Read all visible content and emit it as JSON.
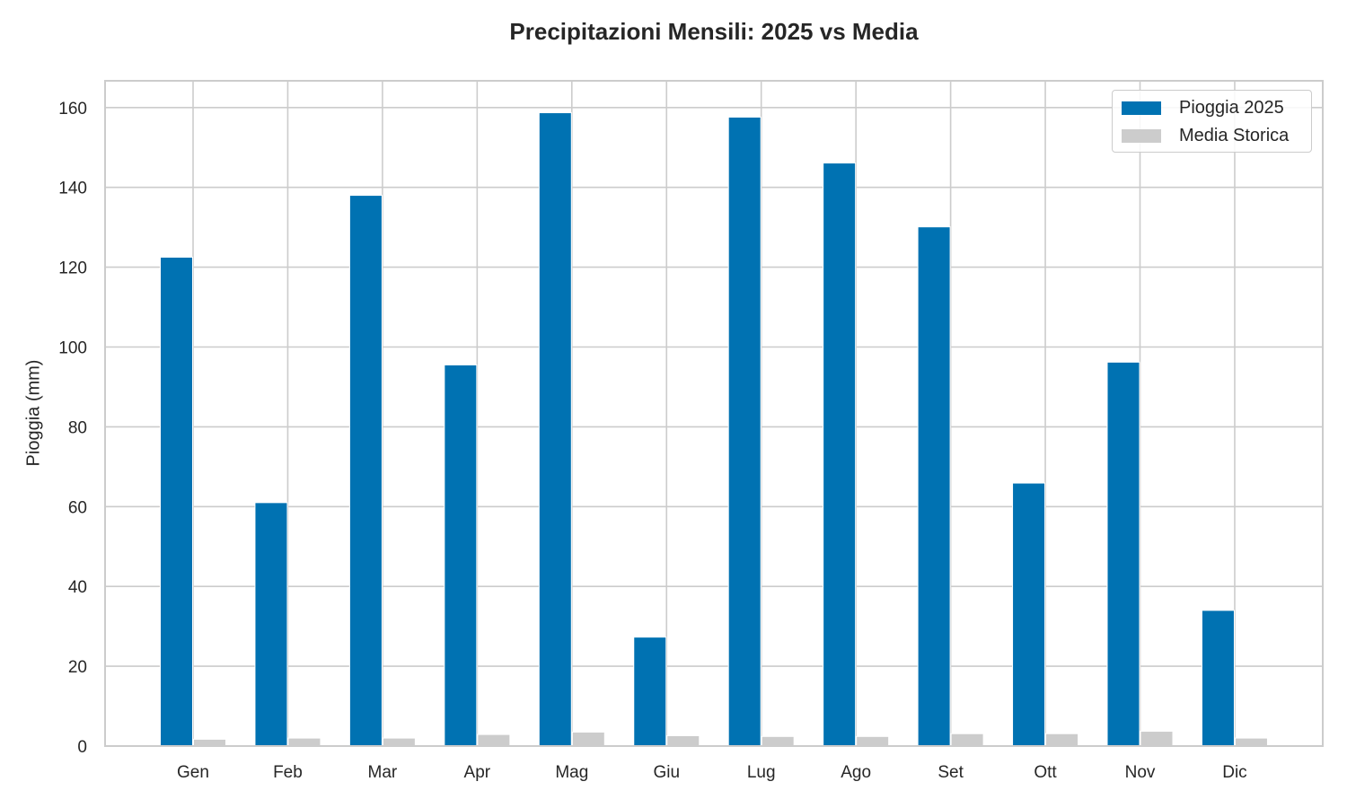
{
  "chart_data": {
    "type": "bar",
    "title": "Precipitazioni Mensili: 2025 vs Media",
    "xlabel": "",
    "ylabel": "Pioggia (mm)",
    "categories": [
      "Gen",
      "Feb",
      "Mar",
      "Apr",
      "Mag",
      "Giu",
      "Lug",
      "Ago",
      "Set",
      "Ott",
      "Nov",
      "Dic"
    ],
    "series": [
      {
        "name": "Pioggia 2025",
        "color": "#0072b2",
        "values": [
          122.5,
          61.0,
          138.0,
          95.5,
          158.7,
          27.3,
          157.6,
          146.1,
          130.1,
          65.9,
          96.2,
          34.0
        ]
      },
      {
        "name": "Media Storica",
        "color": "#cccccc",
        "values": [
          1.7,
          2.0,
          2.0,
          2.9,
          3.5,
          2.6,
          2.4,
          2.4,
          3.1,
          3.1,
          3.7,
          2.0
        ]
      }
    ],
    "ylim": [
      0,
      166.7
    ],
    "yticks": [
      0,
      20,
      40,
      60,
      80,
      100,
      120,
      140,
      160
    ],
    "grid": true,
    "legend_position": "upper right"
  },
  "legend": {
    "items": [
      {
        "label": "Pioggia 2025",
        "color": "#0072b2"
      },
      {
        "label": "Media Storica",
        "color": "#cccccc"
      }
    ]
  }
}
